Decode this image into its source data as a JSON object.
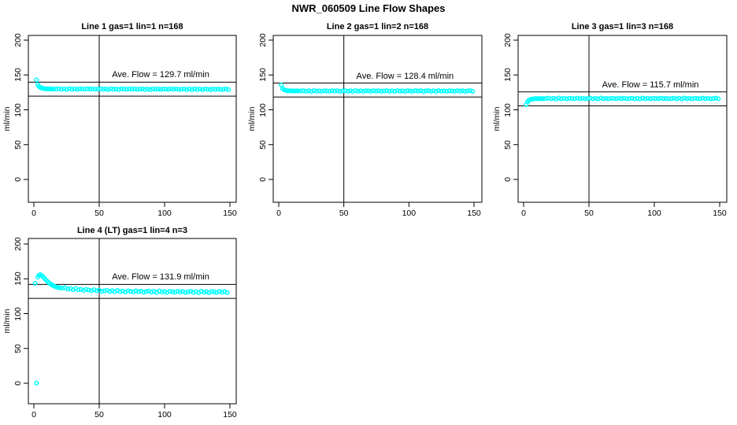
{
  "title": "NWR_060509  Line Flow Shapes",
  "marker_color": "#00FFFF",
  "axis_color": "#000000",
  "chart_data": [
    {
      "type": "scatter",
      "title": "Line 1 gas=1 lin=1 n=168",
      "annotation": "Ave. Flow =  129.7  ml/min",
      "ave_flow": 129.7,
      "ylabel": "ml/min",
      "xlim": [
        -4,
        156
      ],
      "ylim": [
        -33,
        207
      ],
      "xticks": [
        0,
        50,
        100,
        150
      ],
      "yticks": [
        0,
        50,
        100,
        150,
        200
      ],
      "xtick_labels": [
        "0",
        "50",
        "100",
        "150"
      ],
      "ytick_labels": [
        "0",
        "50",
        "100",
        "150",
        "200"
      ],
      "ref_lines_y": [
        139.7,
        119.7
      ],
      "ref_line_x": 50,
      "points": [
        [
          2,
          143.0
        ],
        [
          3,
          136.0
        ],
        [
          4,
          133.5
        ],
        [
          5,
          132.0
        ],
        [
          6,
          131.2
        ],
        [
          7,
          130.8
        ],
        [
          8,
          130.4
        ],
        [
          9,
          130.2
        ],
        [
          10,
          130.0
        ],
        [
          11,
          129.9
        ],
        [
          12,
          129.9
        ],
        [
          13,
          129.8
        ],
        [
          14,
          129.8
        ],
        [
          15,
          129.7
        ],
        [
          17,
          129.8
        ],
        [
          19,
          130.3
        ],
        [
          21,
          129.4
        ],
        [
          23,
          130.1
        ],
        [
          25,
          129.2
        ],
        [
          27,
          130.4
        ],
        [
          29,
          129.6
        ],
        [
          31,
          130.0
        ],
        [
          33,
          129.3
        ],
        [
          35,
          130.2
        ],
        [
          37,
          129.8
        ],
        [
          39,
          129.5
        ],
        [
          41,
          130.3
        ],
        [
          43,
          129.7
        ],
        [
          45,
          130.1
        ],
        [
          47,
          129.4
        ],
        [
          49,
          129.7
        ],
        [
          51,
          130.2
        ],
        [
          53,
          129.3
        ],
        [
          55,
          130.0
        ],
        [
          57,
          129.1
        ],
        [
          59,
          130.3
        ],
        [
          61,
          129.5
        ],
        [
          63,
          129.9
        ],
        [
          65,
          129.2
        ],
        [
          67,
          130.1
        ],
        [
          69,
          129.7
        ],
        [
          71,
          129.4
        ],
        [
          73,
          130.2
        ],
        [
          75,
          129.6
        ],
        [
          77,
          130.0
        ],
        [
          79,
          129.3
        ],
        [
          81,
          129.6
        ],
        [
          83,
          130.1
        ],
        [
          85,
          129.2
        ],
        [
          87,
          129.9
        ],
        [
          89,
          129.0
        ],
        [
          91,
          130.2
        ],
        [
          93,
          129.4
        ],
        [
          95,
          129.8
        ],
        [
          97,
          129.1
        ],
        [
          99,
          130.0
        ],
        [
          101,
          129.6
        ],
        [
          103,
          129.3
        ],
        [
          105,
          130.1
        ],
        [
          107,
          129.5
        ],
        [
          109,
          129.9
        ],
        [
          111,
          129.2
        ],
        [
          113,
          129.5
        ],
        [
          115,
          130.0
        ],
        [
          117,
          129.1
        ],
        [
          119,
          129.8
        ],
        [
          121,
          128.9
        ],
        [
          123,
          130.1
        ],
        [
          125,
          129.3
        ],
        [
          127,
          129.7
        ],
        [
          129,
          129.0
        ],
        [
          131,
          129.9
        ],
        [
          133,
          129.5
        ],
        [
          135,
          129.2
        ],
        [
          137,
          130.0
        ],
        [
          139,
          129.4
        ],
        [
          141,
          129.8
        ],
        [
          143,
          129.1
        ],
        [
          145,
          129.4
        ],
        [
          147,
          129.9
        ],
        [
          149,
          129.0
        ]
      ]
    },
    {
      "type": "scatter",
      "title": "Line 2 gas=1 lin=2 n=168",
      "annotation": "Ave. Flow =  128.4  ml/min",
      "ave_flow": 128.4,
      "ylabel": "ml/min",
      "xlim": [
        -4,
        156
      ],
      "ylim": [
        -33,
        207
      ],
      "xticks": [
        0,
        50,
        100,
        150
      ],
      "yticks": [
        0,
        50,
        100,
        150,
        200
      ],
      "xtick_labels": [
        "0",
        "50",
        "100",
        "150"
      ],
      "ytick_labels": [
        "0",
        "50",
        "100",
        "150",
        "200"
      ],
      "ref_lines_y": [
        138.4,
        118.4
      ],
      "ref_line_x": 50,
      "points": [
        [
          2,
          135.5
        ],
        [
          3,
          130.5
        ],
        [
          4,
          128.8
        ],
        [
          5,
          128.0
        ],
        [
          6,
          127.6
        ],
        [
          7,
          127.4
        ],
        [
          8,
          127.3
        ],
        [
          9,
          127.2
        ],
        [
          10,
          127.1
        ],
        [
          11,
          127.1
        ],
        [
          12,
          127.0
        ],
        [
          13,
          127.0
        ],
        [
          14,
          127.0
        ],
        [
          15,
          127.0
        ],
        [
          17,
          127.0
        ],
        [
          19,
          127.5
        ],
        [
          21,
          126.6
        ],
        [
          23,
          127.3
        ],
        [
          25,
          126.4
        ],
        [
          27,
          127.6
        ],
        [
          29,
          126.8
        ],
        [
          31,
          127.2
        ],
        [
          33,
          126.5
        ],
        [
          35,
          127.4
        ],
        [
          37,
          127.0
        ],
        [
          39,
          126.7
        ],
        [
          41,
          127.5
        ],
        [
          43,
          126.9
        ],
        [
          45,
          127.3
        ],
        [
          47,
          126.6
        ],
        [
          49,
          127.0
        ],
        [
          51,
          127.5
        ],
        [
          53,
          126.6
        ],
        [
          55,
          127.3
        ],
        [
          57,
          126.4
        ],
        [
          59,
          127.6
        ],
        [
          61,
          126.8
        ],
        [
          63,
          127.2
        ],
        [
          65,
          126.5
        ],
        [
          67,
          127.4
        ],
        [
          69,
          127.0
        ],
        [
          71,
          126.7
        ],
        [
          73,
          127.5
        ],
        [
          75,
          126.9
        ],
        [
          77,
          127.3
        ],
        [
          79,
          126.6
        ],
        [
          81,
          127.0
        ],
        [
          83,
          127.5
        ],
        [
          85,
          126.6
        ],
        [
          87,
          127.3
        ],
        [
          89,
          126.4
        ],
        [
          91,
          127.6
        ],
        [
          93,
          126.8
        ],
        [
          95,
          127.2
        ],
        [
          97,
          126.5
        ],
        [
          99,
          127.4
        ],
        [
          101,
          127.0
        ],
        [
          103,
          126.7
        ],
        [
          105,
          127.5
        ],
        [
          107,
          126.9
        ],
        [
          109,
          127.3
        ],
        [
          111,
          126.6
        ],
        [
          113,
          127.0
        ],
        [
          115,
          127.5
        ],
        [
          117,
          126.6
        ],
        [
          119,
          127.3
        ],
        [
          121,
          126.4
        ],
        [
          123,
          127.6
        ],
        [
          125,
          126.8
        ],
        [
          127,
          127.2
        ],
        [
          129,
          126.5
        ],
        [
          131,
          127.4
        ],
        [
          133,
          127.0
        ],
        [
          135,
          126.7
        ],
        [
          137,
          127.5
        ],
        [
          139,
          126.9
        ],
        [
          141,
          127.3
        ],
        [
          143,
          126.6
        ],
        [
          145,
          127.0
        ],
        [
          147,
          127.5
        ],
        [
          149,
          126.6
        ]
      ]
    },
    {
      "type": "scatter",
      "title": "Line 3 gas=1 lin=3 n=168",
      "annotation": "Ave. Flow =  115.7  ml/min",
      "ave_flow": 115.7,
      "ylabel": "ml/min",
      "xlim": [
        -4,
        156
      ],
      "ylim": [
        -33,
        207
      ],
      "xticks": [
        0,
        50,
        100,
        150
      ],
      "yticks": [
        0,
        50,
        100,
        150,
        200
      ],
      "xtick_labels": [
        "0",
        "50",
        "100",
        "150"
      ],
      "ytick_labels": [
        "0",
        "50",
        "100",
        "150",
        "200"
      ],
      "ref_lines_y": [
        125.7,
        105.7
      ],
      "ref_line_x": 50,
      "points": [
        [
          2,
          107.5
        ],
        [
          3,
          111.5
        ],
        [
          4,
          113.5
        ],
        [
          5,
          114.5
        ],
        [
          6,
          115.2
        ],
        [
          7,
          115.6
        ],
        [
          8,
          115.8
        ],
        [
          9,
          115.9
        ],
        [
          10,
          116.0
        ],
        [
          11,
          116.0
        ],
        [
          12,
          116.1
        ],
        [
          13,
          116.1
        ],
        [
          14,
          116.1
        ],
        [
          15,
          116.2
        ],
        [
          17,
          116.2
        ],
        [
          19,
          116.7
        ],
        [
          21,
          115.8
        ],
        [
          23,
          116.5
        ],
        [
          25,
          115.6
        ],
        [
          27,
          116.8
        ],
        [
          29,
          116.0
        ],
        [
          31,
          116.4
        ],
        [
          33,
          115.7
        ],
        [
          35,
          116.6
        ],
        [
          37,
          116.2
        ],
        [
          39,
          115.9
        ],
        [
          41,
          116.7
        ],
        [
          43,
          116.1
        ],
        [
          45,
          116.5
        ],
        [
          47,
          115.8
        ],
        [
          49,
          116.2
        ],
        [
          51,
          116.7
        ],
        [
          53,
          115.8
        ],
        [
          55,
          116.5
        ],
        [
          57,
          115.6
        ],
        [
          59,
          116.8
        ],
        [
          61,
          116.0
        ],
        [
          63,
          116.4
        ],
        [
          65,
          115.7
        ],
        [
          67,
          116.6
        ],
        [
          69,
          116.2
        ],
        [
          71,
          115.9
        ],
        [
          73,
          116.7
        ],
        [
          75,
          116.1
        ],
        [
          77,
          116.5
        ],
        [
          79,
          115.8
        ],
        [
          81,
          116.2
        ],
        [
          83,
          116.7
        ],
        [
          85,
          115.8
        ],
        [
          87,
          116.5
        ],
        [
          89,
          115.6
        ],
        [
          91,
          116.8
        ],
        [
          93,
          116.0
        ],
        [
          95,
          116.4
        ],
        [
          97,
          115.7
        ],
        [
          99,
          116.6
        ],
        [
          101,
          116.2
        ],
        [
          103,
          115.9
        ],
        [
          105,
          116.7
        ],
        [
          107,
          116.1
        ],
        [
          109,
          116.5
        ],
        [
          111,
          115.8
        ],
        [
          113,
          116.2
        ],
        [
          115,
          116.7
        ],
        [
          117,
          115.8
        ],
        [
          119,
          116.5
        ],
        [
          121,
          115.6
        ],
        [
          123,
          116.8
        ],
        [
          125,
          116.0
        ],
        [
          127,
          116.4
        ],
        [
          129,
          115.7
        ],
        [
          131,
          116.6
        ],
        [
          133,
          116.2
        ],
        [
          135,
          115.9
        ],
        [
          137,
          116.7
        ],
        [
          139,
          116.1
        ],
        [
          141,
          116.5
        ],
        [
          143,
          115.8
        ],
        [
          145,
          116.2
        ],
        [
          147,
          116.7
        ],
        [
          149,
          115.8
        ]
      ]
    },
    {
      "type": "scatter",
      "title": "Line 4 (LT) gas=1 lin=4 n=3",
      "annotation": "Ave. Flow =  131.9  ml/min",
      "ave_flow": 131.9,
      "ylabel": "ml/min",
      "xlim": [
        -4,
        156
      ],
      "ylim": [
        -33,
        207
      ],
      "xticks": [
        0,
        50,
        100,
        150
      ],
      "yticks": [
        0,
        50,
        100,
        150,
        200
      ],
      "xtick_labels": [
        "0",
        "50",
        "100",
        "150"
      ],
      "ytick_labels": [
        "0",
        "50",
        "100",
        "150",
        "200"
      ],
      "ref_lines_y": [
        141.9,
        121.9
      ],
      "ref_line_x": 50,
      "points": [
        [
          1,
          143.5
        ],
        [
          2,
          0.3
        ],
        [
          3,
          152.5
        ],
        [
          4,
          155.0
        ],
        [
          5,
          155.8
        ],
        [
          6,
          154.8
        ],
        [
          7,
          153.0
        ],
        [
          8,
          151.0
        ],
        [
          9,
          149.0
        ],
        [
          10,
          147.0
        ],
        [
          11,
          145.2
        ],
        [
          12,
          143.6
        ],
        [
          13,
          142.2
        ],
        [
          14,
          141.0
        ],
        [
          15,
          140.0
        ],
        [
          16,
          139.1
        ],
        [
          17,
          138.4
        ],
        [
          18,
          137.8
        ],
        [
          19,
          137.3
        ],
        [
          20,
          136.9
        ],
        [
          22,
          136.7
        ],
        [
          24,
          137.2
        ],
        [
          26,
          135.2
        ],
        [
          28,
          136.1
        ],
        [
          30,
          134.3
        ],
        [
          32,
          136.1
        ],
        [
          34,
          134.3
        ],
        [
          36,
          134.7
        ],
        [
          38,
          133.3
        ],
        [
          40,
          134.8
        ],
        [
          42,
          133.9
        ],
        [
          44,
          133.0
        ],
        [
          46,
          134.4
        ],
        [
          48,
          133.0
        ],
        [
          50,
          133.7
        ],
        [
          52,
          132.1
        ],
        [
          54,
          132.8
        ],
        [
          56,
          133.6
        ],
        [
          58,
          131.9
        ],
        [
          60,
          133.0
        ],
        [
          62,
          131.4
        ],
        [
          64,
          133.4
        ],
        [
          66,
          131.8
        ],
        [
          68,
          132.4
        ],
        [
          70,
          131.1
        ],
        [
          72,
          132.8
        ],
        [
          74,
          132.0
        ],
        [
          76,
          131.2
        ],
        [
          78,
          132.8
        ],
        [
          80,
          131.5
        ],
        [
          82,
          132.3
        ],
        [
          84,
          130.8
        ],
        [
          86,
          131.6
        ],
        [
          88,
          132.4
        ],
        [
          90,
          130.8
        ],
        [
          92,
          132.0
        ],
        [
          94,
          130.4
        ],
        [
          96,
          132.5
        ],
        [
          98,
          131.0
        ],
        [
          100,
          131.7
        ],
        [
          102,
          130.4
        ],
        [
          104,
          132.1
        ],
        [
          106,
          131.4
        ],
        [
          108,
          130.7
        ],
        [
          110,
          132.3
        ],
        [
          112,
          131.1
        ],
        [
          114,
          131.8
        ],
        [
          116,
          130.4
        ],
        [
          118,
          131.2
        ],
        [
          120,
          132.1
        ],
        [
          122,
          130.5
        ],
        [
          124,
          131.7
        ],
        [
          126,
          130.1
        ],
        [
          128,
          132.2
        ],
        [
          130,
          130.7
        ],
        [
          132,
          131.4
        ],
        [
          134,
          130.2
        ],
        [
          136,
          131.9
        ],
        [
          138,
          131.1
        ],
        [
          140,
          130.4
        ],
        [
          142,
          132.0
        ],
        [
          144,
          130.8
        ],
        [
          146,
          131.6
        ],
        [
          148,
          130.2
        ]
      ]
    }
  ]
}
